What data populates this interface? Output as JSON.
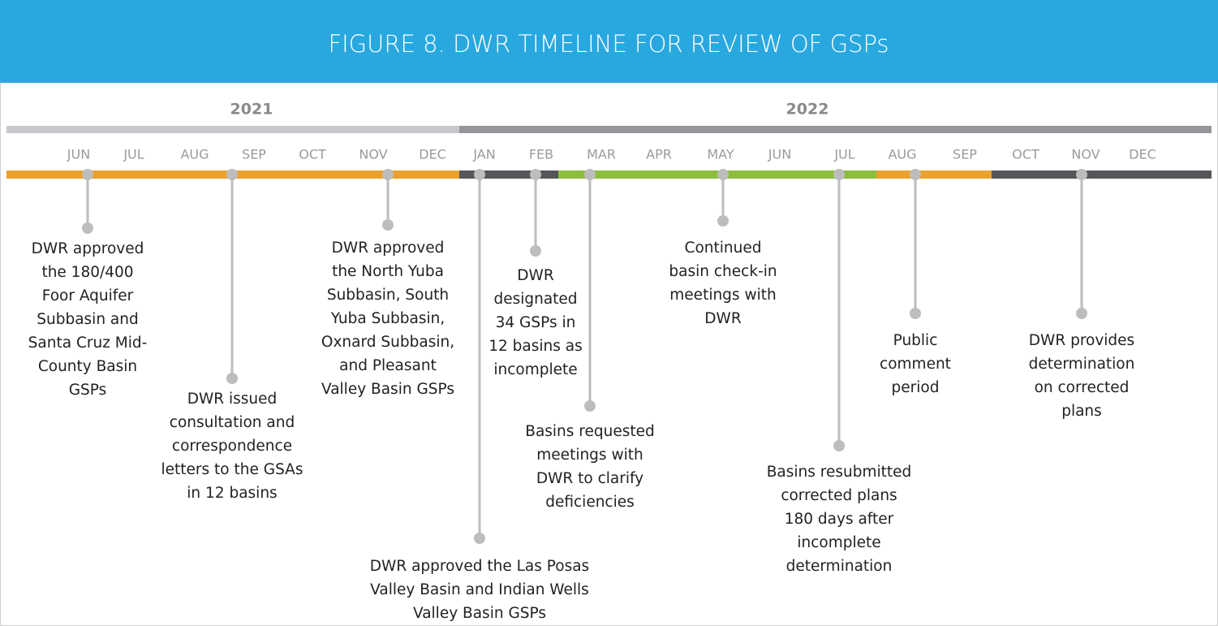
{
  "header": {
    "title": "FIGURE 8. DWR TIMELINE FOR REVIEW OF GSPs"
  },
  "years": [
    "2021",
    "2022"
  ],
  "months": [
    "JUN",
    "JUL",
    "AUG",
    "SEP",
    "OCT",
    "NOV",
    "DEC",
    "JAN",
    "FEB",
    "MAR",
    "APR",
    "MAY",
    "JUN",
    "JUL",
    "AUG",
    "SEP",
    "OCT",
    "NOV",
    "DEC"
  ],
  "events": [
    {
      "lines": [
        "DWR approved",
        "the 180/400",
        "Foor Aquifer",
        "Subbasin and",
        "Santa Cruz Mid-",
        "County Basin",
        "GSPs"
      ]
    },
    {
      "lines": [
        "DWR issued",
        "consultation and",
        "correspondence",
        "letters to the GSAs",
        "in 12 basins"
      ]
    },
    {
      "lines": [
        "DWR approved",
        "the North Yuba",
        "Subbasin, South",
        "Yuba Subbasin,",
        "Oxnard Subbasin,",
        "and Pleasant",
        "Valley Basin GSPs"
      ]
    },
    {
      "lines": [
        "DWR approved the Las Posas",
        "Valley Basin and Indian Wells",
        "Valley Basin GSPs"
      ]
    },
    {
      "lines": [
        "DWR",
        "designated",
        "34 GSPs in",
        "12 basins as",
        "incomplete"
      ]
    },
    {
      "lines": [
        "Basins requested",
        "meetings with",
        "DWR to clarify",
        "deficiencies"
      ]
    },
    {
      "lines": [
        "Continued",
        "basin check-in",
        "meetings with",
        "DWR"
      ]
    },
    {
      "lines": [
        "Basins resubmitted",
        "corrected plans",
        "180 days after",
        "incomplete",
        "determination"
      ]
    },
    {
      "lines": [
        "Public",
        "comment",
        "period"
      ]
    },
    {
      "lines": [
        "DWR provides",
        "determination",
        "on corrected",
        "plans"
      ]
    }
  ]
}
